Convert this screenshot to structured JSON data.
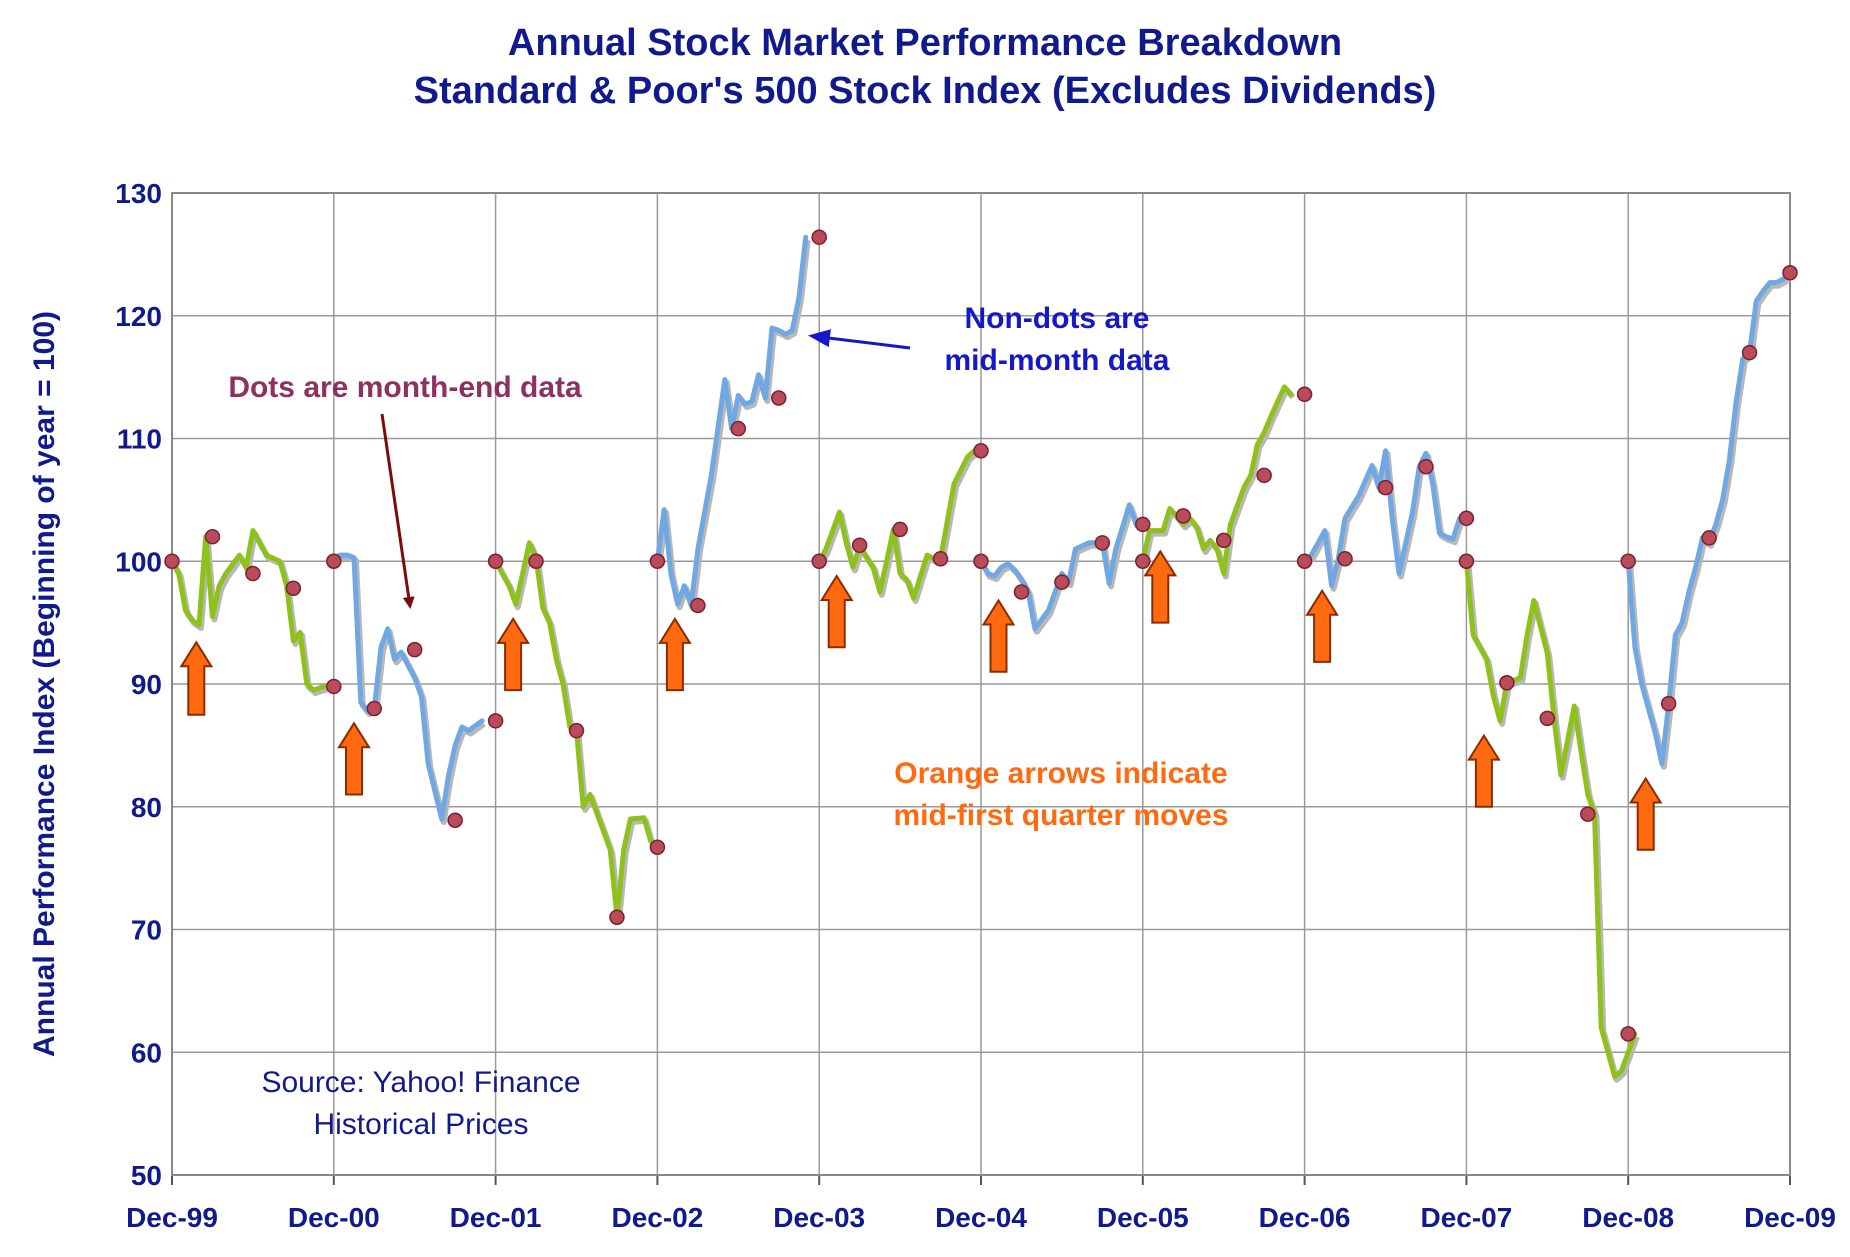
{
  "chart_data": {
    "type": "line",
    "title": "Annual Stock Market Performance Breakdown",
    "subtitle": "Standard & Poor's 500 Stock Index (Excludes Dividends)",
    "xlabel": "",
    "ylabel": "Annual Performance Index (Beginning of year = 100)",
    "ylim": [
      50,
      130
    ],
    "yticks": [
      50,
      60,
      70,
      80,
      90,
      100,
      110,
      120,
      130
    ],
    "xlim": [
      0,
      120
    ],
    "xticks": [
      {
        "label": "Dec-99",
        "m": 0
      },
      {
        "label": "Dec-00",
        "m": 12
      },
      {
        "label": "Dec-01",
        "m": 24
      },
      {
        "label": "Dec-02",
        "m": 36
      },
      {
        "label": "Dec-03",
        "m": 48
      },
      {
        "label": "Dec-04",
        "m": 60
      },
      {
        "label": "Dec-05",
        "m": 72
      },
      {
        "label": "Dec-06",
        "m": 84
      },
      {
        "label": "Dec-07",
        "m": 96
      },
      {
        "label": "Dec-08",
        "m": 108
      },
      {
        "label": "Dec-09",
        "m": 120
      }
    ],
    "grid": true,
    "series": [
      {
        "year": "2000",
        "color": "#8ec21b",
        "values": [
          [
            0,
            100
          ],
          [
            0.5,
            99
          ],
          [
            1,
            96
          ],
          [
            1.5,
            95.2
          ],
          [
            2,
            94.8
          ],
          [
            2.5,
            102
          ],
          [
            3,
            95.5
          ],
          [
            3.5,
            98
          ],
          [
            4,
            99
          ],
          [
            5,
            100.5
          ],
          [
            5.5,
            99.5
          ],
          [
            6,
            102.5
          ],
          [
            6.5,
            101.5
          ],
          [
            7,
            100.5
          ],
          [
            8,
            100
          ],
          [
            8.5,
            98
          ],
          [
            9,
            93.5
          ],
          [
            9.5,
            94.2
          ],
          [
            10,
            90
          ],
          [
            10.5,
            89.5
          ],
          [
            11,
            89.7
          ],
          [
            12,
            90
          ]
        ]
      },
      {
        "year": "2001",
        "color": "#6fa8e3",
        "values": [
          [
            12,
            100.3
          ],
          [
            12.5,
            100.5
          ],
          [
            13,
            100.5
          ],
          [
            13.5,
            100.3
          ],
          [
            14,
            88.5
          ],
          [
            14.5,
            87.8
          ],
          [
            15,
            88
          ],
          [
            15.5,
            93
          ],
          [
            16,
            94.5
          ],
          [
            16.5,
            92
          ],
          [
            17,
            92.6
          ],
          [
            18,
            90.5
          ],
          [
            18.5,
            89
          ],
          [
            19,
            83.5
          ],
          [
            20,
            79
          ],
          [
            20.5,
            82.5
          ],
          [
            21,
            85
          ],
          [
            21.5,
            86.5
          ],
          [
            22,
            86.2
          ],
          [
            23,
            87
          ]
        ]
      },
      {
        "year": "2002",
        "color": "#8ec21b",
        "values": [
          [
            24,
            100
          ],
          [
            25,
            98
          ],
          [
            25.5,
            96.5
          ],
          [
            26,
            99
          ],
          [
            26.5,
            101.5
          ],
          [
            27,
            100.3
          ],
          [
            27.5,
            96.2
          ],
          [
            28,
            95
          ],
          [
            28.5,
            92
          ],
          [
            29,
            90
          ],
          [
            29.5,
            86.5
          ],
          [
            30,
            86.2
          ],
          [
            30.5,
            80
          ],
          [
            31,
            81
          ],
          [
            32,
            78
          ],
          [
            32.5,
            76.5
          ],
          [
            33,
            71
          ],
          [
            33.5,
            76.5
          ],
          [
            34,
            79
          ],
          [
            35,
            79.1
          ],
          [
            35.5,
            77.2
          ],
          [
            36,
            76.7
          ]
        ]
      },
      {
        "year": "2003",
        "color": "#6fa8e3",
        "values": [
          [
            36,
            100
          ],
          [
            36.5,
            104.2
          ],
          [
            37,
            99
          ],
          [
            37.5,
            96.5
          ],
          [
            38,
            98
          ],
          [
            38.5,
            96.4
          ],
          [
            39,
            101
          ],
          [
            40,
            107
          ],
          [
            41,
            114.8
          ],
          [
            41.5,
            110.8
          ],
          [
            42,
            113.5
          ],
          [
            42.5,
            112.8
          ],
          [
            43,
            113
          ],
          [
            43.5,
            115.2
          ],
          [
            44,
            113.3
          ],
          [
            44.5,
            119
          ],
          [
            45,
            118.8
          ],
          [
            45.5,
            118.5
          ],
          [
            46,
            118.8
          ],
          [
            46.5,
            121.5
          ],
          [
            47,
            126.4
          ]
        ]
      },
      {
        "year": "2004",
        "color": "#8ec21b",
        "values": [
          [
            48,
            100
          ],
          [
            48.5,
            101
          ],
          [
            49,
            102.5
          ],
          [
            49.5,
            104
          ],
          [
            50,
            101.5
          ],
          [
            50.5,
            99.5
          ],
          [
            51,
            101.2
          ],
          [
            52,
            99.5
          ],
          [
            52.5,
            97.5
          ],
          [
            53,
            100
          ],
          [
            53.5,
            102.6
          ],
          [
            54,
            99
          ],
          [
            54.5,
            98.5
          ],
          [
            55,
            97
          ],
          [
            56,
            100.5
          ],
          [
            56.5,
            100.2
          ],
          [
            57,
            100.2
          ],
          [
            58,
            106.3
          ],
          [
            59,
            108.5
          ],
          [
            59.5,
            109
          ]
        ]
      },
      {
        "year": "2005",
        "color": "#6fa8e3",
        "values": [
          [
            60,
            100
          ],
          [
            60.5,
            99
          ],
          [
            61,
            98.8
          ],
          [
            61.5,
            99.5
          ],
          [
            62,
            99.8
          ],
          [
            62.5,
            99.3
          ],
          [
            63,
            98.5
          ],
          [
            63.5,
            97.5
          ],
          [
            64,
            94.5
          ],
          [
            65,
            96
          ],
          [
            66,
            99
          ],
          [
            66.5,
            98.3
          ],
          [
            67,
            101
          ],
          [
            68,
            101.5
          ],
          [
            69,
            101.5
          ],
          [
            69.5,
            98.2
          ],
          [
            70,
            101
          ],
          [
            71,
            104.6
          ],
          [
            71.5,
            103
          ]
        ]
      },
      {
        "year": "2006",
        "color": "#8ec21b",
        "values": [
          [
            72,
            100
          ],
          [
            72.5,
            102.5
          ],
          [
            73,
            102.5
          ],
          [
            73.5,
            102.5
          ],
          [
            74,
            104.3
          ],
          [
            74.5,
            103.7
          ],
          [
            75,
            103
          ],
          [
            75.5,
            103.5
          ],
          [
            76,
            102.8
          ],
          [
            76.5,
            101
          ],
          [
            77,
            101.7
          ],
          [
            77.5,
            101
          ],
          [
            78,
            99
          ],
          [
            78.5,
            103
          ],
          [
            79,
            104.5
          ],
          [
            79.5,
            106
          ],
          [
            80,
            107
          ],
          [
            80.5,
            109.5
          ],
          [
            81,
            110.5
          ],
          [
            81.5,
            111.8
          ],
          [
            82,
            113
          ],
          [
            82.5,
            114.2
          ],
          [
            83,
            113.6
          ]
        ]
      },
      {
        "year": "2007",
        "color": "#6fa8e3",
        "values": [
          [
            84,
            100
          ],
          [
            84.5,
            100.5
          ],
          [
            85,
            101.5
          ],
          [
            85.5,
            102.5
          ],
          [
            86,
            98
          ],
          [
            86.5,
            100.2
          ],
          [
            87,
            103.5
          ],
          [
            88,
            105.3
          ],
          [
            89,
            107.8
          ],
          [
            89.5,
            106
          ],
          [
            90,
            109
          ],
          [
            90.5,
            103.5
          ],
          [
            91,
            99
          ],
          [
            92,
            104
          ],
          [
            92.5,
            107.7
          ],
          [
            93,
            108.8
          ],
          [
            93.5,
            106.3
          ],
          [
            94,
            102.3
          ],
          [
            94.5,
            102
          ],
          [
            95,
            101.8
          ],
          [
            95.5,
            103.5
          ]
        ]
      },
      {
        "year": "2008",
        "color": "#8ec21b",
        "values": [
          [
            96,
            100
          ],
          [
            96.5,
            94
          ],
          [
            97,
            93
          ],
          [
            97.5,
            92
          ],
          [
            98,
            89
          ],
          [
            98.5,
            87
          ],
          [
            99,
            90.1
          ],
          [
            100,
            90.5
          ],
          [
            100.5,
            94
          ],
          [
            101,
            96.8
          ],
          [
            102,
            92.5
          ],
          [
            102.5,
            87.2
          ],
          [
            103,
            82.6
          ],
          [
            104,
            88.2
          ],
          [
            104.5,
            84.5
          ],
          [
            105,
            81
          ],
          [
            105.5,
            79.4
          ],
          [
            106,
            62
          ],
          [
            106.5,
            60
          ],
          [
            107,
            58
          ],
          [
            107.5,
            58.5
          ],
          [
            108,
            60
          ],
          [
            108.5,
            61.5
          ]
        ]
      },
      {
        "year": "2009",
        "color": "#6fa8e3",
        "values": [
          [
            108,
            100
          ],
          [
            108.5,
            93
          ],
          [
            109,
            90
          ],
          [
            110,
            86
          ],
          [
            110.5,
            83.5
          ],
          [
            111,
            88.4
          ],
          [
            111.5,
            94
          ],
          [
            112,
            95
          ],
          [
            112.5,
            97.5
          ],
          [
            113,
            99.5
          ],
          [
            113.5,
            101.9
          ],
          [
            114,
            101.5
          ],
          [
            114.5,
            103
          ],
          [
            115,
            105
          ],
          [
            115.5,
            108.2
          ],
          [
            116,
            113
          ],
          [
            116.5,
            116.5
          ],
          [
            117,
            117
          ],
          [
            117.5,
            121.2
          ],
          [
            118,
            122
          ],
          [
            118.5,
            122.7
          ],
          [
            119,
            122.7
          ],
          [
            119.5,
            123
          ],
          [
            120,
            123.5
          ]
        ]
      }
    ],
    "month_end_points": [
      [
        0,
        100
      ],
      [
        3,
        102
      ],
      [
        6,
        99
      ],
      [
        9,
        97.8
      ],
      [
        12,
        89.8
      ],
      [
        12,
        100
      ],
      [
        15,
        88
      ],
      [
        18,
        92.8
      ],
      [
        21,
        78.9
      ],
      [
        24,
        87
      ],
      [
        24,
        100
      ],
      [
        27,
        100
      ],
      [
        30,
        86.2
      ],
      [
        33,
        71
      ],
      [
        36,
        76.7
      ],
      [
        36,
        100
      ],
      [
        39,
        96.4
      ],
      [
        42,
        110.8
      ],
      [
        45,
        113.3
      ],
      [
        48,
        126.4
      ],
      [
        48,
        100
      ],
      [
        51,
        101.3
      ],
      [
        54,
        102.6
      ],
      [
        57,
        100.2
      ],
      [
        60,
        109
      ],
      [
        60,
        100
      ],
      [
        63,
        97.5
      ],
      [
        66,
        98.3
      ],
      [
        69,
        101.5
      ],
      [
        72,
        103
      ],
      [
        72,
        100
      ],
      [
        75,
        103.7
      ],
      [
        78,
        101.7
      ],
      [
        81,
        107
      ],
      [
        84,
        113.6
      ],
      [
        84,
        100
      ],
      [
        87,
        100.2
      ],
      [
        90,
        106
      ],
      [
        93,
        107.7
      ],
      [
        96,
        103.5
      ],
      [
        96,
        100
      ],
      [
        99,
        90.1
      ],
      [
        102,
        87.2
      ],
      [
        105,
        79.4
      ],
      [
        108,
        61.5
      ],
      [
        108,
        100
      ],
      [
        111,
        88.4
      ],
      [
        114,
        101.9
      ],
      [
        117,
        117
      ],
      [
        120,
        123.5
      ]
    ],
    "arrows": [
      {
        "m": 1.8,
        "y_base": 87.5,
        "y_tip": 93.4
      },
      {
        "m": 13.5,
        "y_base": 81,
        "y_tip": 86.8
      },
      {
        "m": 25.3,
        "y_base": 89.5,
        "y_tip": 95.3
      },
      {
        "m": 37.3,
        "y_base": 89.5,
        "y_tip": 95.3
      },
      {
        "m": 49.3,
        "y_base": 93,
        "y_tip": 98.8
      },
      {
        "m": 61.3,
        "y_base": 91,
        "y_tip": 96.8
      },
      {
        "m": 73.3,
        "y_base": 95,
        "y_tip": 100.8
      },
      {
        "m": 85.3,
        "y_base": 91.8,
        "y_tip": 97.6
      },
      {
        "m": 97.3,
        "y_base": 80,
        "y_tip": 85.8
      },
      {
        "m": 109.3,
        "y_base": 76.5,
        "y_tip": 82.3
      }
    ]
  },
  "annotations": {
    "dots_label": "Dots are month-end data",
    "nondots_label_line1": "Non-dots are",
    "nondots_label_line2": "mid-month data",
    "arrows_label_line1": "Orange arrows indicate",
    "arrows_label_line2": "mid-first quarter moves",
    "source_line1": "Source: Yahoo! Finance",
    "source_line2": "Historical Prices"
  },
  "colors": {
    "title": "#101a8c",
    "green_line": "#8ec21b",
    "blue_line": "#6fa8e3",
    "dot_fill": "#b94b5a",
    "arrow_fill": "#ff6a10",
    "arrow_stroke": "#8c2a00",
    "dots_label": "#8e3060",
    "nondots_label": "#1418c8",
    "arrows_label": "#ff6a10",
    "dark_arrow": "#7a0c0c",
    "blue_arrow": "#1418c8"
  }
}
